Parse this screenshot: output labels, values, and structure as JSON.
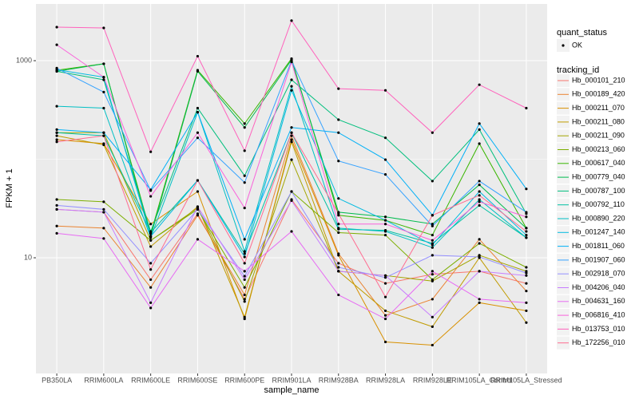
{
  "chart_data": {
    "type": "line",
    "log_y": true,
    "grid": true,
    "x_label": "sample_name",
    "y_label": "FPKM + 1",
    "categories": [
      "PB350LA",
      "RRIM600LA",
      "RRIM600LE",
      "RRIM600SE",
      "RRIM600PE",
      "RRIM901LA",
      "RRIM928BA",
      "RRIM928LA",
      "RRIM928LE",
      "RRIM105LA_Control",
      "RRIM105LA_Stressed"
    ],
    "ylim": [
      0.67,
      3760
    ],
    "yticks": [
      10,
      1000
    ],
    "shape_legend": {
      "title": "quant_status",
      "labels": [
        "OK"
      ]
    },
    "color_legend_title": "tracking_id",
    "series": [
      {
        "name": "Hb_000101_210",
        "color": "#F8766D",
        "values": [
          31,
          29,
          6.0,
          28,
          3.8,
          39,
          8.8,
          5.5,
          6.8,
          7.3,
          5.5
        ]
      },
      {
        "name": "Hb_000189_420",
        "color": "#EA8331",
        "values": [
          21,
          20,
          5,
          27,
          4.2,
          173,
          11,
          2.6,
          3.8,
          15.4,
          4.6
        ]
      },
      {
        "name": "Hb_000211_070",
        "color": "#D89000",
        "values": [
          158,
          144,
          22,
          47,
          2.4,
          158,
          10.6,
          1.4,
          1.3,
          3.5,
          2.9
        ]
      },
      {
        "name": "Hb_000211_080",
        "color": "#C09B00",
        "values": [
          173,
          140,
          13,
          33,
          2.5,
          150,
          7.3,
          2.9,
          2,
          10,
          2.2
        ]
      },
      {
        "name": "Hb_000211_090",
        "color": "#A3A500",
        "values": [
          186,
          186,
          15,
          32,
          3.6,
          99,
          7.3,
          6.6,
          5.8,
          10.6,
          7.3
        ]
      },
      {
        "name": "Hb_000213_060",
        "color": "#7CAE00",
        "values": [
          39,
          37,
          15,
          31,
          5,
          47,
          18,
          17,
          6,
          14,
          8
        ]
      },
      {
        "name": "Hb_000617_040",
        "color": "#39B600",
        "values": [
          800,
          930,
          17.5,
          800,
          230,
          1050,
          27,
          24,
          17,
          144,
          20
        ]
      },
      {
        "name": "Hb_000779_040",
        "color": "#00BB4E",
        "values": [
          780,
          930,
          16.5,
          780,
          210,
          1020,
          29,
          26,
          22,
          55,
          20
        ]
      },
      {
        "name": "Hb_000787_100",
        "color": "#00BF7D",
        "values": [
          780,
          640,
          18.5,
          330,
          68,
          640,
          252,
          165,
          60,
          200,
          28
        ]
      },
      {
        "name": "Hb_000792_110",
        "color": "#00C1A3",
        "values": [
          186,
          173,
          18,
          61,
          11,
          186,
          19.5,
          19,
          14,
          34,
          16
        ]
      },
      {
        "name": "Hb_000890_220",
        "color": "#00BFC4",
        "values": [
          345,
          330,
          16,
          300,
          11.6,
          550,
          20,
          18.5,
          12.7,
          39,
          16
        ]
      },
      {
        "name": "Hb_001247_140",
        "color": "#00BAE0",
        "values": [
          810,
          680,
          16.5,
          61,
          10.2,
          500,
          40,
          24,
          13.5,
          47,
          17
        ]
      },
      {
        "name": "Hb_001811_060",
        "color": "#00B0F6",
        "values": [
          200,
          186,
          49,
          300,
          15.4,
          210,
          186,
          99,
          27,
          230,
          50
        ]
      },
      {
        "name": "Hb_001907_060",
        "color": "#35A2FF",
        "values": [
          840,
          480,
          48,
          165,
          58,
          1000,
          96,
          70,
          21,
          60,
          29
        ]
      },
      {
        "name": "Hb_002918_070",
        "color": "#9590FF",
        "values": [
          34,
          31,
          8.8,
          31,
          6.5,
          47,
          8,
          6.3,
          10.6,
          10.2,
          7
        ]
      },
      {
        "name": "Hb_004206_040",
        "color": "#C77CFF",
        "values": [
          31,
          29,
          3.5,
          33,
          6,
          38,
          7.3,
          6.6,
          2.5,
          7.3,
          6.6
        ]
      },
      {
        "name": "Hb_004631_160",
        "color": "#E76BF3",
        "values": [
          17.7,
          15.7,
          3.1,
          15.4,
          7.3,
          18.5,
          4.2,
          2.4,
          7.3,
          3.8,
          3.5
        ]
      },
      {
        "name": "Hb_006816_410",
        "color": "#FA62DB",
        "values": [
          1450,
          680,
          42,
          186,
          32,
          970,
          22,
          22,
          15,
          37,
          26
        ]
      },
      {
        "name": "Hb_013753_010",
        "color": "#FF62BC",
        "values": [
          2190,
          2150,
          119,
          1110,
          122,
          2550,
          520,
          500,
          186,
          570,
          330
        ]
      },
      {
        "name": "Hb_172256_010",
        "color": "#FF6C91",
        "values": [
          150,
          173,
          7.6,
          61,
          8.8,
          186,
          28,
          4,
          27,
          43,
          18.5
        ]
      }
    ]
  }
}
